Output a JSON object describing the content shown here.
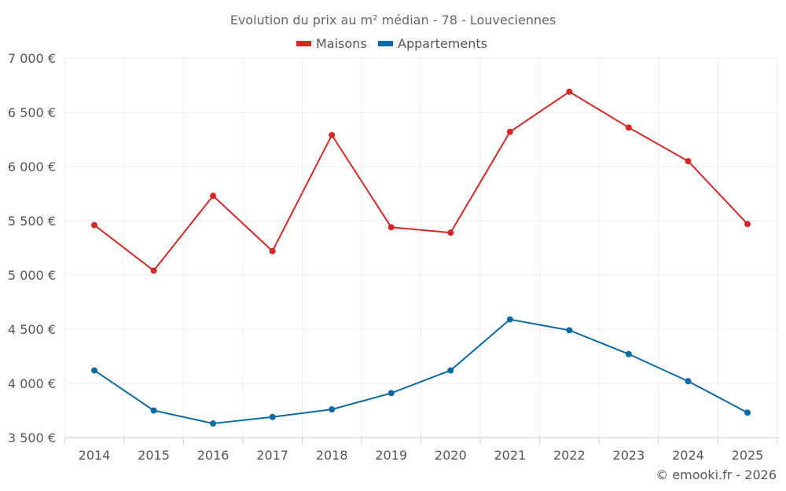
{
  "chart_data": {
    "type": "line",
    "title": "Evolution du prix au m² médian - 78 - Louveciennes",
    "xlabel": "",
    "ylabel": "",
    "ylim": [
      3500,
      7000
    ],
    "yticks": [
      "3 500 €",
      "4 000 €",
      "4 500 €",
      "5 000 €",
      "5 500 €",
      "6 000 €",
      "6 500 €",
      "7 000 €"
    ],
    "ytick_values": [
      3500,
      4000,
      4500,
      5000,
      5500,
      6000,
      6500,
      7000
    ],
    "categories": [
      "2014",
      "2015",
      "2016",
      "2017",
      "2018",
      "2019",
      "2020",
      "2021",
      "2022",
      "2023",
      "2024",
      "2025"
    ],
    "legend_position": "top-center",
    "grid": true,
    "series": [
      {
        "name": "Maisons",
        "color": "#d62728",
        "values": [
          5460,
          5040,
          5730,
          5220,
          6290,
          5440,
          5390,
          6320,
          6690,
          6360,
          6050,
          5470
        ]
      },
      {
        "name": "Appartements",
        "color": "#0a6aa1",
        "values": [
          4120,
          3750,
          3630,
          3690,
          3760,
          3910,
          4120,
          4590,
          4490,
          4270,
          4020,
          3730
        ]
      }
    ]
  },
  "credit": "© emooki.fr - 2026"
}
